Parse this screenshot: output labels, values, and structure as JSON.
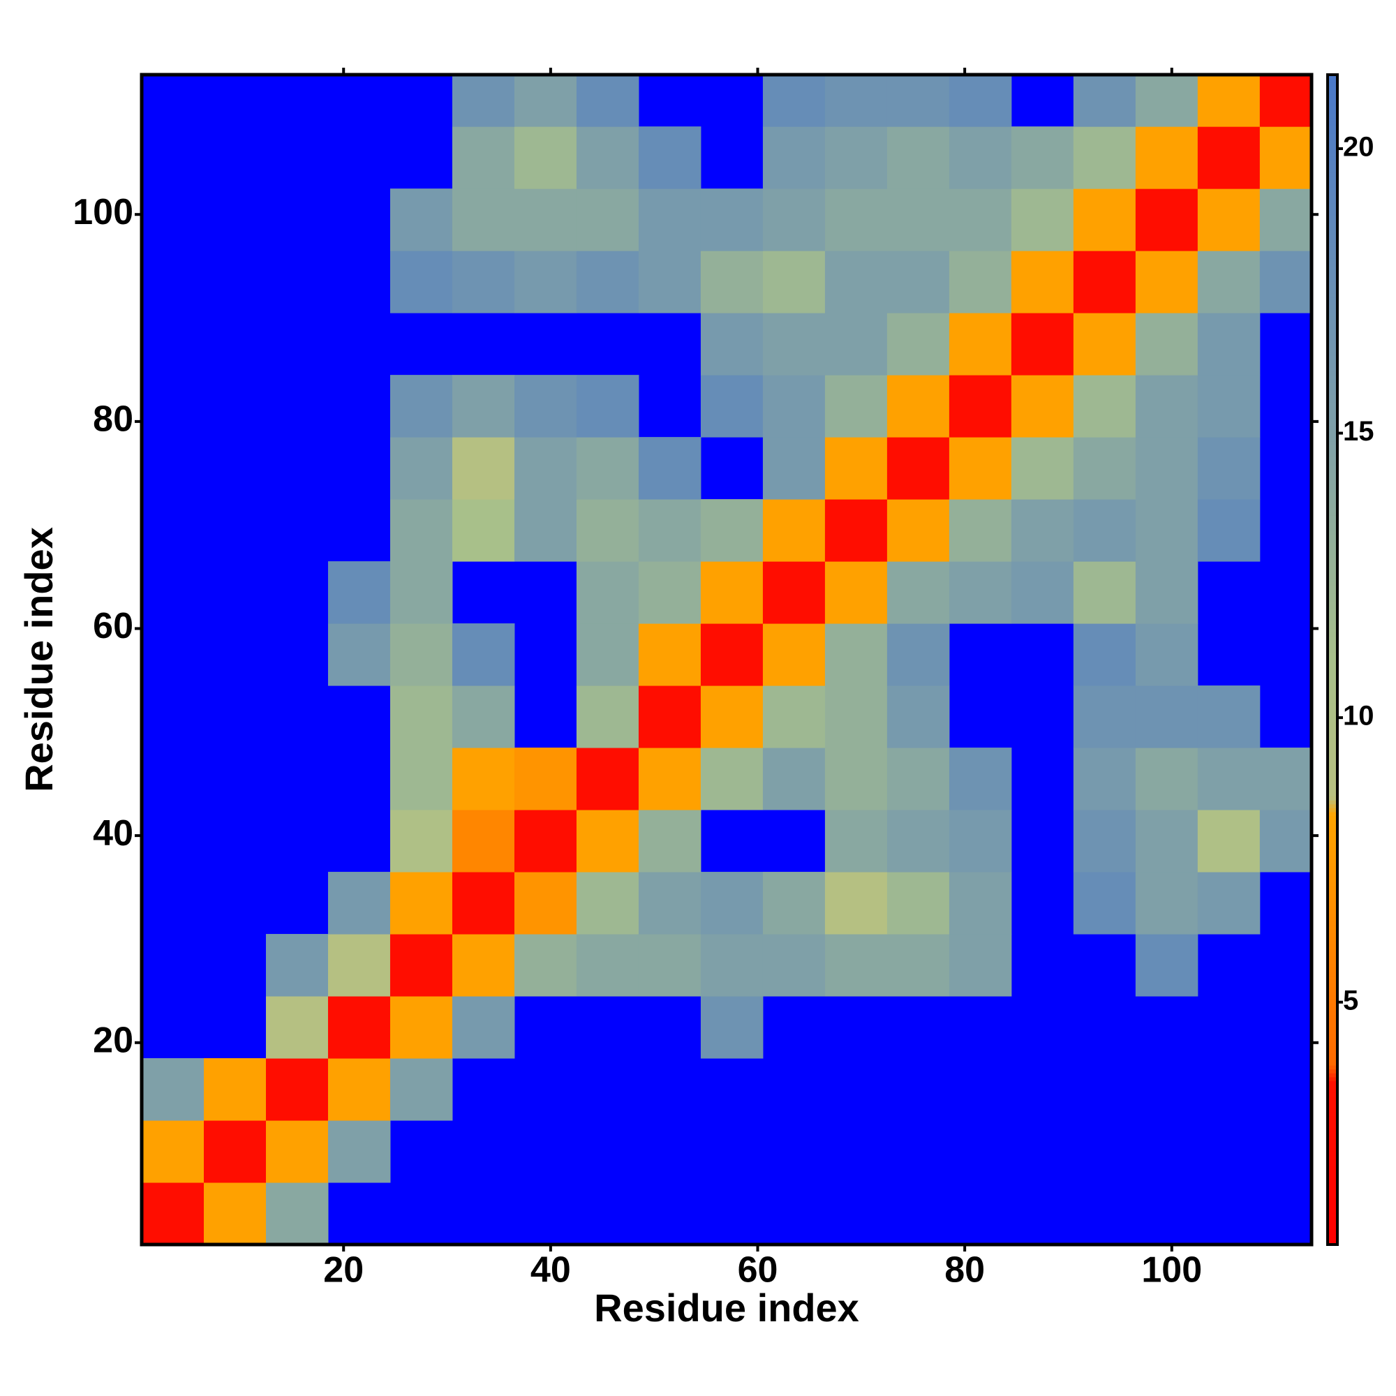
{
  "chart_data": {
    "type": "heatmap",
    "x_label": "Residue index",
    "y_label": "Residue index",
    "xlim": [
      0.5,
      113.5
    ],
    "ylim": [
      0.5,
      113.5
    ],
    "xticks": [
      20,
      40,
      60,
      80,
      100
    ],
    "yticks": [
      20,
      40,
      60,
      80,
      100
    ],
    "x_edges": [
      0.5,
      6.5,
      12.5,
      18.5,
      24.5,
      30.5,
      36.5,
      42.5,
      48.5,
      54.5,
      60.5,
      66.5,
      72.5,
      78.5,
      84.5,
      90.5,
      96.5,
      102.5,
      108.5,
      113.5
    ],
    "y_edges": [
      0.5,
      6.5,
      12.5,
      18.5,
      24.5,
      30.5,
      36.5,
      42.5,
      48.5,
      54.5,
      60.5,
      66.5,
      72.5,
      78.5,
      84.5,
      90.5,
      96.5,
      102.5,
      108.5,
      113.5
    ],
    "background": "#0000ff",
    "values": [
      [
        3,
        8,
        14,
        null,
        null,
        null,
        null,
        null,
        null,
        null,
        null,
        null,
        null,
        null,
        null,
        null,
        null,
        null,
        null
      ],
      [
        8,
        3,
        8,
        15,
        null,
        null,
        null,
        null,
        null,
        null,
        null,
        null,
        null,
        null,
        null,
        null,
        null,
        null,
        null
      ],
      [
        15,
        8,
        3,
        8,
        15,
        null,
        null,
        null,
        null,
        null,
        null,
        null,
        null,
        null,
        null,
        null,
        null,
        null,
        null
      ],
      [
        null,
        null,
        9,
        3,
        8,
        16,
        null,
        null,
        null,
        17,
        null,
        null,
        null,
        null,
        null,
        null,
        null,
        null,
        null
      ],
      [
        null,
        null,
        16,
        9,
        3,
        8,
        13,
        14,
        14,
        15,
        15,
        14,
        14,
        15,
        null,
        null,
        18,
        null,
        null
      ],
      [
        null,
        null,
        null,
        16,
        8,
        3,
        7,
        12,
        15,
        16,
        14,
        9,
        12,
        15,
        null,
        18,
        15,
        16,
        null
      ],
      [
        null,
        null,
        null,
        null,
        10,
        6,
        3,
        8,
        13,
        null,
        null,
        14,
        15,
        16,
        null,
        17,
        15,
        10,
        16
      ],
      [
        null,
        null,
        null,
        null,
        12,
        8,
        7,
        3,
        8,
        12,
        15,
        13,
        14,
        17,
        null,
        16,
        14,
        15,
        15
      ],
      [
        null,
        null,
        null,
        null,
        12,
        14,
        null,
        12,
        3,
        8,
        12,
        13,
        16,
        null,
        null,
        17,
        17,
        17,
        null
      ],
      [
        null,
        null,
        null,
        16,
        13,
        18,
        null,
        14,
        8,
        3,
        8,
        13,
        17,
        null,
        null,
        18,
        16,
        null,
        null
      ],
      [
        null,
        null,
        null,
        18,
        14,
        null,
        null,
        14,
        13,
        8,
        3,
        8,
        14,
        15,
        16,
        12,
        15,
        null,
        null
      ],
      [
        null,
        null,
        null,
        null,
        14,
        11,
        15,
        13,
        14,
        13,
        8,
        3,
        8,
        13,
        15,
        16,
        15,
        18,
        null
      ],
      [
        null,
        null,
        null,
        null,
        15,
        9,
        15,
        14,
        18,
        null,
        16,
        8,
        3,
        8,
        12,
        14,
        15,
        17,
        null
      ],
      [
        null,
        null,
        null,
        null,
        17,
        15,
        17,
        18,
        null,
        18,
        16,
        13,
        8,
        3,
        8,
        12,
        15,
        16,
        null
      ],
      [
        null,
        null,
        null,
        null,
        null,
        null,
        null,
        null,
        null,
        16,
        15,
        15,
        13,
        8,
        3,
        8,
        13,
        16,
        null
      ],
      [
        null,
        null,
        null,
        null,
        18,
        17,
        16,
        17,
        16,
        13,
        12,
        15,
        15,
        13,
        8,
        3,
        8,
        14,
        17
      ],
      [
        null,
        null,
        null,
        null,
        16,
        14,
        14,
        14,
        16,
        16,
        15,
        14,
        14,
        14,
        12,
        8,
        3,
        8,
        14
      ],
      [
        null,
        null,
        null,
        null,
        null,
        14,
        12,
        15,
        18,
        null,
        16,
        15,
        14,
        15,
        14,
        12,
        8,
        3,
        8
      ],
      [
        null,
        null,
        null,
        null,
        null,
        17,
        15,
        18,
        null,
        null,
        18,
        17,
        17,
        18,
        null,
        17,
        14,
        8,
        3
      ]
    ],
    "colorbar": {
      "lim": [
        0.74,
        21.3
      ],
      "ticks": [
        5,
        10,
        15,
        20
      ],
      "stops": [
        {
          "value": 0.74,
          "color": "#ff0000"
        },
        {
          "value": 3.6,
          "color": "#ff1000"
        },
        {
          "value": 3.9,
          "color": "#ff6a00"
        },
        {
          "value": 8.3,
          "color": "#ffa500"
        },
        {
          "value": 8.6,
          "color": "#b8c080"
        },
        {
          "value": 11,
          "color": "#a8c08a"
        },
        {
          "value": 15,
          "color": "#7fa0a8"
        },
        {
          "value": 21.3,
          "color": "#4a78c8"
        }
      ]
    }
  }
}
